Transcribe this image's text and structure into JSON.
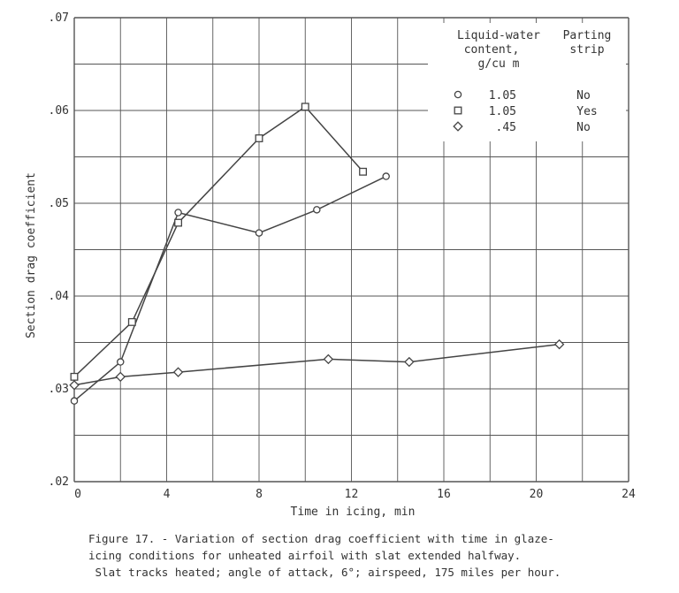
{
  "chart_data": {
    "type": "line",
    "xlabel": "Time in icing, min",
    "ylabel": "Section drag coefficient",
    "xlim": [
      0,
      24
    ],
    "ylim": [
      0.02,
      0.07
    ],
    "x_ticks": [
      0,
      4,
      8,
      12,
      16,
      20,
      24
    ],
    "x_tick_labels": [
      "0",
      "4",
      "8",
      "12",
      "16",
      "20",
      "24"
    ],
    "y_ticks": [
      0.02,
      0.03,
      0.04,
      0.05,
      0.06,
      0.07
    ],
    "y_tick_labels": [
      ".02",
      ".03",
      ".04",
      ".05",
      ".06",
      ".07"
    ],
    "grid": true,
    "legend_placement": "top-right",
    "legend_headers": {
      "lwc": [
        "Liquid-water",
        "content,",
        "g/cu m"
      ],
      "strip": [
        "Parting",
        "strip"
      ]
    },
    "series": [
      {
        "marker": "circle",
        "lwc": "1.05",
        "parting_strip": "No",
        "points": [
          [
            0,
            0.0287
          ],
          [
            2,
            0.0329
          ],
          [
            4.5,
            0.049
          ],
          [
            8,
            0.0468
          ],
          [
            10.5,
            0.0493
          ],
          [
            13.5,
            0.0529
          ]
        ]
      },
      {
        "marker": "square",
        "lwc": "1.05",
        "parting_strip": "Yes",
        "points": [
          [
            0,
            0.0313
          ],
          [
            2.5,
            0.0372
          ],
          [
            4.5,
            0.0479
          ],
          [
            8,
            0.057
          ],
          [
            10,
            0.0604
          ],
          [
            12.5,
            0.0534
          ]
        ]
      },
      {
        "marker": "diamond",
        "lwc": ".45",
        "parting_strip": "No",
        "points": [
          [
            0,
            0.0304
          ],
          [
            2,
            0.0313
          ],
          [
            4.5,
            0.0318
          ],
          [
            11,
            0.0332
          ],
          [
            14.5,
            0.0329
          ],
          [
            21,
            0.0348
          ]
        ]
      }
    ]
  },
  "caption": [
    "Figure 17. - Variation of section drag coefficient with time in glaze-",
    "icing conditions for unheated airfoil with slat extended halfway.",
    " Slat tracks heated; angle of attack, 6°; airspeed, 175 miles per hour."
  ],
  "colors": {
    "ink": "#444444",
    "grid": "#555555",
    "background": "#ffffff"
  }
}
